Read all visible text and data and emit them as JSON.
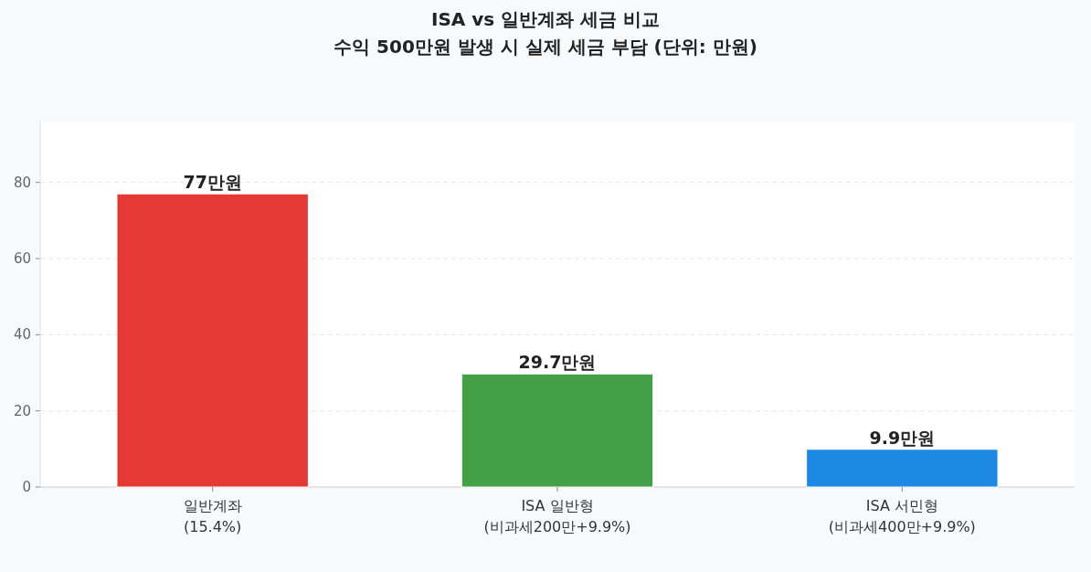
{
  "chart_data": {
    "type": "bar",
    "title": "ISA vs 일반계좌 세금 비교",
    "subtitle": "수익 500만원 발생 시 실제 세금 부담 (단위: 만원)",
    "categories": [
      "일반계좌\n(15.4%)",
      "ISA 일반형\n(비과세200만+9.9%)",
      "ISA 서민형\n(비과세400만+9.9%)"
    ],
    "values": [
      77,
      29.7,
      9.9
    ],
    "colors": [
      "#e53935",
      "#43a047",
      "#1e88e5"
    ],
    "value_labels": [
      "77만원",
      "29.7만원",
      "9.9만원"
    ],
    "ylim": [
      0,
      96
    ],
    "yticks": [
      0,
      20,
      40,
      60,
      80
    ],
    "grid": "y"
  }
}
